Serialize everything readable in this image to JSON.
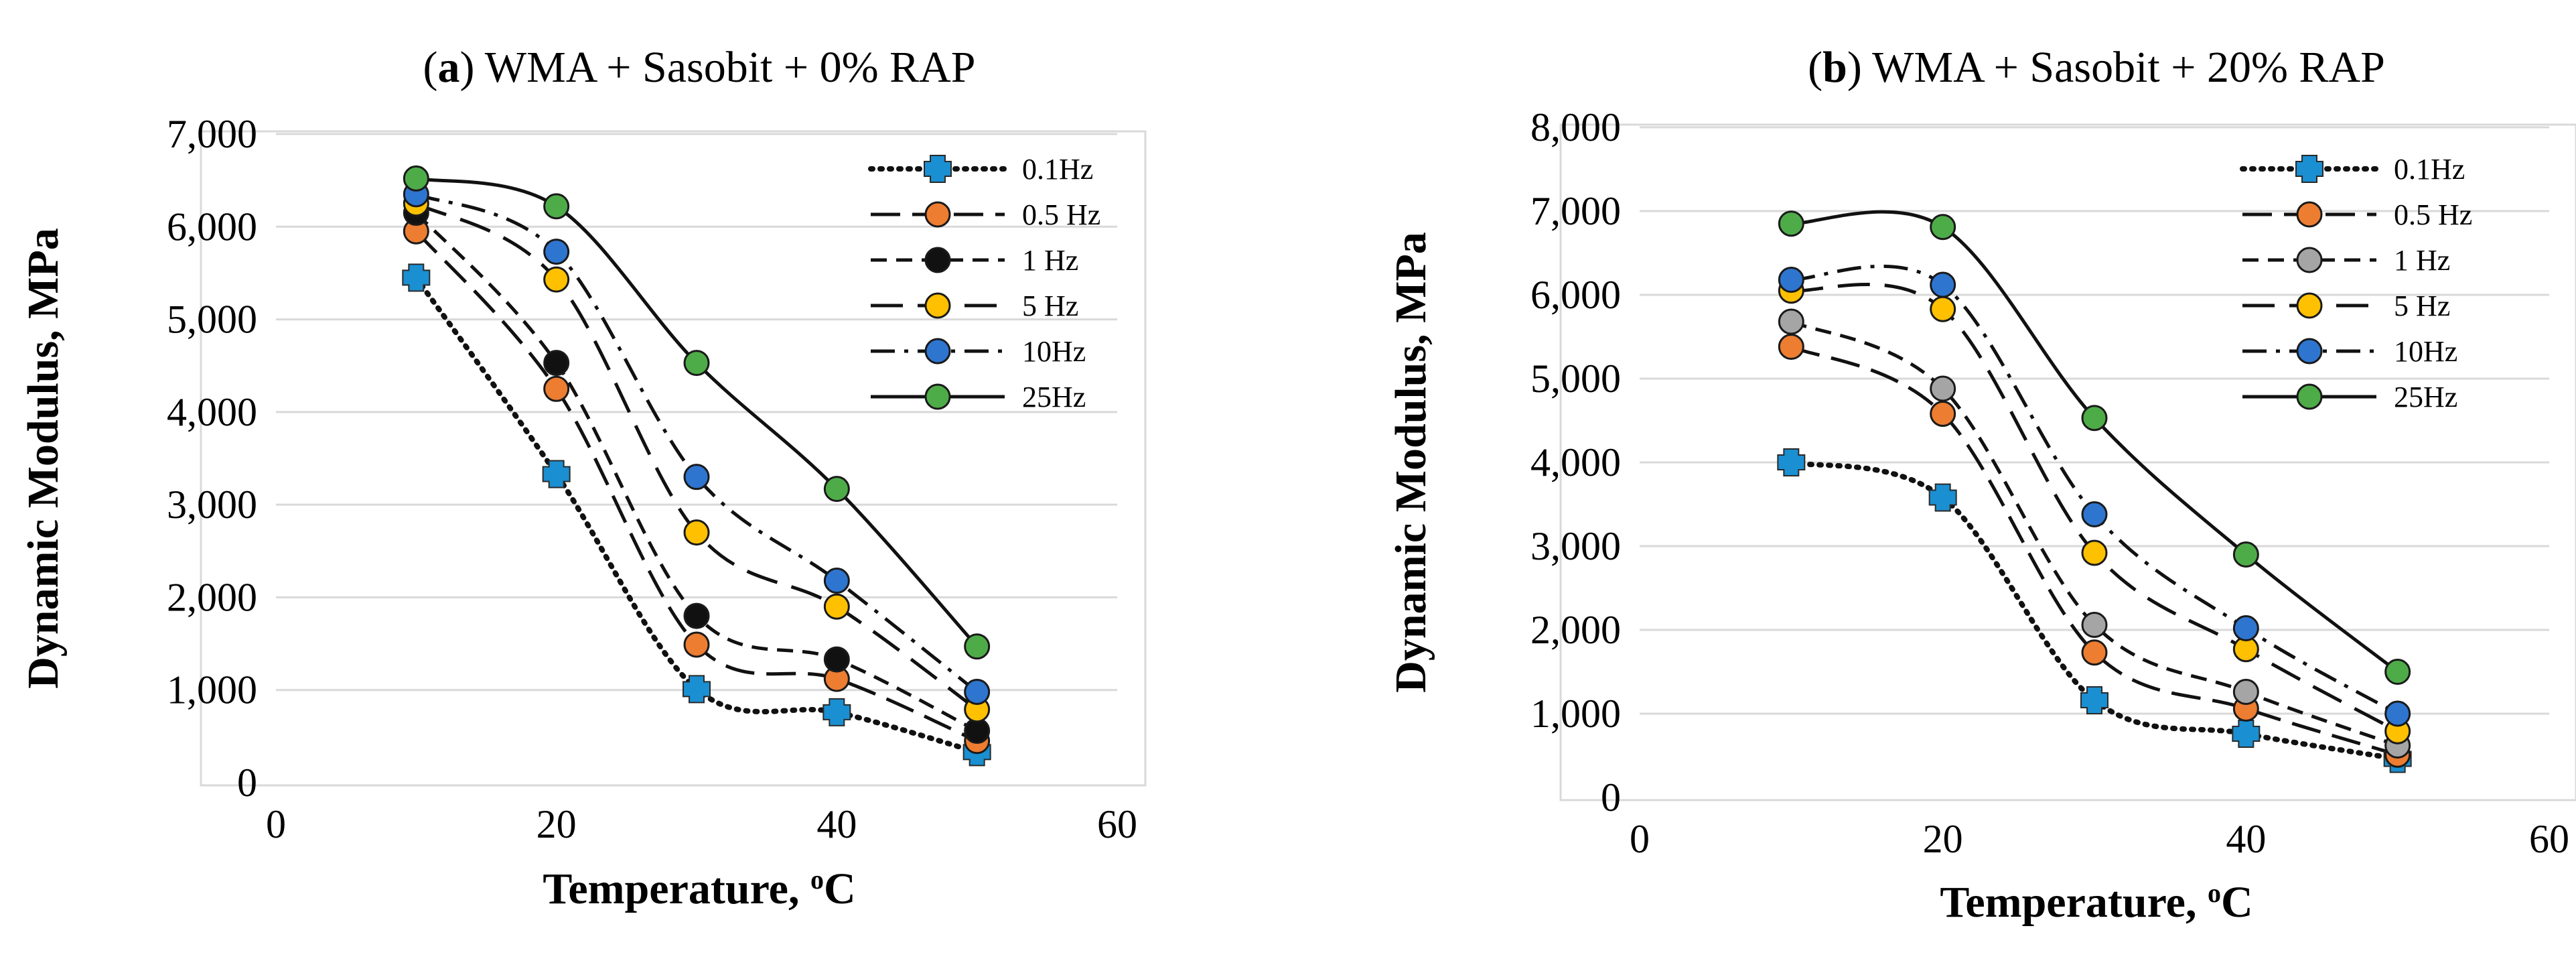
{
  "chart_data": [
    {
      "type": "line",
      "title_bold": "a",
      "title": "WMA + Sasobit + 0% RAP",
      "xlabel": "Temperature, ",
      "xlabel_unit_sup": "o",
      "xlabel_unit": "C",
      "ylabel": "Dynamic Modulus, MPa",
      "xlim": [
        0,
        60
      ],
      "ylim": [
        0,
        7000
      ],
      "xticks": [
        0,
        20,
        40,
        60
      ],
      "xtick_labels": [
        "0",
        "20",
        "40",
        "60"
      ],
      "yticks": [
        0,
        1000,
        2000,
        3000,
        4000,
        5000,
        6000,
        7000
      ],
      "ytick_labels": [
        "0",
        "1,000",
        "2,000",
        "3,000",
        "4,000",
        "5,000",
        "6,000",
        "7,000"
      ],
      "grid": "horizontal",
      "legend_position": "top-right",
      "x": [
        10,
        20,
        30,
        40,
        50
      ],
      "series": [
        {
          "name": "0.1Hz",
          "values": [
            5450,
            3330,
            1010,
            760,
            330
          ],
          "color": "#1a8fd1",
          "marker": "cross",
          "dash": "dotted"
        },
        {
          "name": "0.5 Hz",
          "values": [
            5950,
            4250,
            1490,
            1120,
            450
          ],
          "color": "#ed7d31",
          "marker": "circle",
          "dash": "long-dash"
        },
        {
          "name": "1 Hz",
          "values": [
            6150,
            4530,
            1800,
            1330,
            560
          ],
          "color": "#111111",
          "marker": "circle",
          "dash": "dash"
        },
        {
          "name": "5 Hz",
          "values": [
            6250,
            5430,
            2700,
            1900,
            790
          ],
          "color": "#ffc000",
          "marker": "circle",
          "dash": "long-dash-gap"
        },
        {
          "name": "10Hz",
          "values": [
            6350,
            5730,
            3300,
            2180,
            980
          ],
          "color": "#2e75d0",
          "marker": "circle",
          "dash": "dash-dot"
        },
        {
          "name": "25Hz",
          "values": [
            6520,
            6220,
            4530,
            3170,
            1470
          ],
          "color": "#4eac48",
          "marker": "circle",
          "dash": "solid"
        }
      ]
    },
    {
      "type": "line",
      "title_bold": "b",
      "title": "WMA + Sasobit + 20% RAP",
      "xlabel": "Temperature, ",
      "xlabel_unit_sup": "o",
      "xlabel_unit": "C",
      "ylabel": "Dynamic Modulus, MPa",
      "xlim": [
        0,
        60
      ],
      "ylim": [
        0,
        8000
      ],
      "xticks": [
        0,
        20,
        40,
        60
      ],
      "xtick_labels": [
        "0",
        "20",
        "40",
        "60"
      ],
      "yticks": [
        0,
        1000,
        2000,
        3000,
        4000,
        5000,
        6000,
        7000,
        8000
      ],
      "ytick_labels": [
        "0",
        "1,000",
        "2,000",
        "3,000",
        "4,000",
        "5,000",
        "6,000",
        "7,000",
        "8,000"
      ],
      "grid": "horizontal",
      "legend_position": "top-right",
      "x": [
        10,
        20,
        30,
        40,
        50
      ],
      "series": [
        {
          "name": "0.1Hz",
          "values": [
            4000,
            3580,
            1160,
            760,
            460
          ],
          "color": "#1a8fd1",
          "marker": "cross",
          "dash": "dotted"
        },
        {
          "name": "0.5 Hz",
          "values": [
            5380,
            4580,
            1730,
            1060,
            510
          ],
          "color": "#ed7d31",
          "marker": "circle",
          "dash": "long-dash"
        },
        {
          "name": "1 Hz",
          "values": [
            5680,
            4880,
            2060,
            1260,
            620
          ],
          "color": "#a5a5a5",
          "marker": "circle",
          "dash": "dash"
        },
        {
          "name": "5 Hz",
          "values": [
            6050,
            5830,
            2920,
            1770,
            790
          ],
          "color": "#ffc000",
          "marker": "circle",
          "dash": "long-dash-gap"
        },
        {
          "name": "10Hz",
          "values": [
            6180,
            6120,
            3380,
            2020,
            1000
          ],
          "color": "#2e75d0",
          "marker": "circle",
          "dash": "dash-dot"
        },
        {
          "name": "25Hz",
          "values": [
            6850,
            6810,
            4530,
            2900,
            1500
          ],
          "color": "#4eac48",
          "marker": "circle",
          "dash": "solid"
        }
      ]
    }
  ]
}
